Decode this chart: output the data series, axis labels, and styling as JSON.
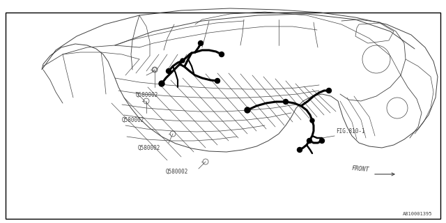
{
  "bg_color": "#ffffff",
  "line_color": "#404040",
  "thick_color": "#000000",
  "border_color": "#000000",
  "label_color": "#404040",
  "diagram_id": "A810001395",
  "front_label": "FRONT",
  "fig_label": "FIG.810-1",
  "lw_thin": 0.5,
  "lw_thick": 2.2,
  "border": [
    0.012,
    0.055,
    0.976,
    0.925
  ]
}
